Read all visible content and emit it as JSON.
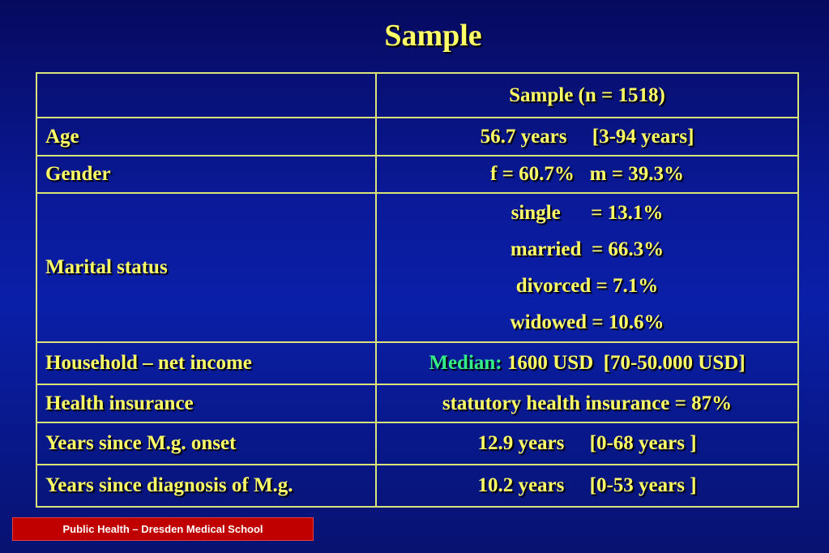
{
  "title": "Sample",
  "table": {
    "header": {
      "label": "",
      "value": "Sample (n = 1518)"
    },
    "rows": {
      "age": {
        "label": "Age",
        "value": "56.7 years     [3-94 years]"
      },
      "gender": {
        "label": "Gender",
        "value": "f = 60.7%   m = 39.3%"
      },
      "marital": {
        "label": "Marital status",
        "values": [
          "single      = 13.1%",
          "married  = 66.3%",
          "divorced = 7.1%",
          "widowed = 10.6%"
        ]
      },
      "income": {
        "label": "Household – net income",
        "prefix": "Median:",
        "value": " 1600 USD  [70-50.000 USD]"
      },
      "insurance": {
        "label": "Health insurance",
        "value": "statutory health insurance = 87%"
      },
      "onset": {
        "label": "Years since M.g. onset",
        "value": "12.9 years     [0-68 years ]"
      },
      "diagnosis": {
        "label": "Years since diagnosis of M.g.",
        "value": "10.2 years     [0-53 years ]"
      }
    }
  },
  "footer": "Public Health – Dresden Medical School",
  "colors": {
    "text": "#ffff66",
    "accent": "#33ee88",
    "border": "#d8e37a",
    "footer_bg": "#c00000"
  }
}
